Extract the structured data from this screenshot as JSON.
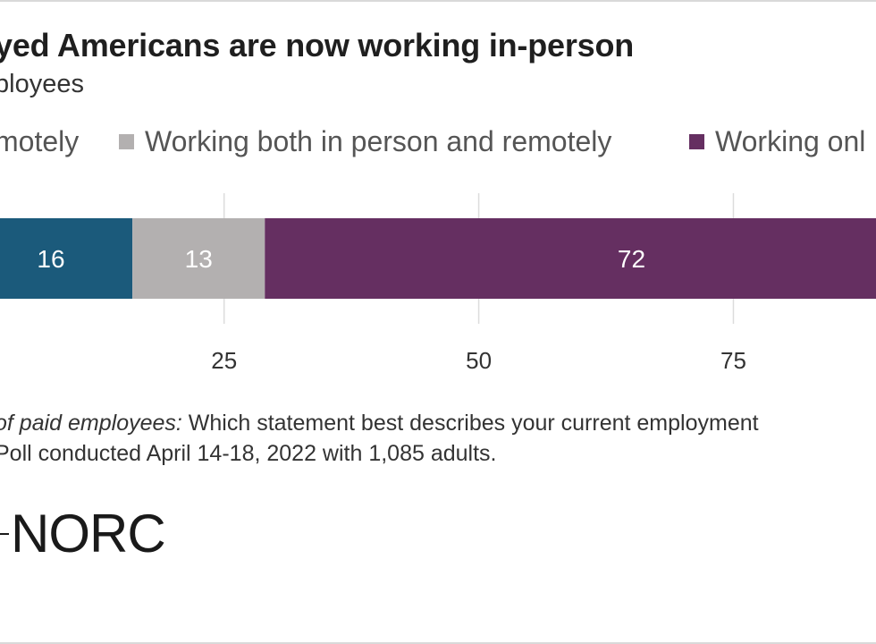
{
  "header": {
    "title": "yed Americans are now working in-person",
    "subtitle": "ployees"
  },
  "legend": [
    {
      "label": "motely",
      "color": null
    },
    {
      "label": "Working both in person and remotely",
      "color": "#b3b0b0"
    },
    {
      "label": "Working onl",
      "color": "#652f61"
    }
  ],
  "chart_data": {
    "type": "bar",
    "orientation": "horizontal",
    "stacked": true,
    "categories": [
      ""
    ],
    "series": [
      {
        "name": "motely",
        "values": [
          16
        ],
        "color": "#1b5a7b"
      },
      {
        "name": "Working both in person and remotely",
        "values": [
          13
        ],
        "color": "#b3b0b0"
      },
      {
        "name": "Working onl",
        "values": [
          72
        ],
        "color": "#652f61"
      }
    ],
    "xlim": [
      3,
      89
    ],
    "xticks": [
      25,
      50,
      75
    ],
    "grid": true,
    "legend_position": "top"
  },
  "footnote": {
    "line1_italic": "of paid employees:",
    "line1_rest": " Which statement best describes your current employment",
    "line2": "Poll conducted April 14-18, 2022 with 1,085 adults."
  },
  "logo": {
    "text": "NORC"
  }
}
